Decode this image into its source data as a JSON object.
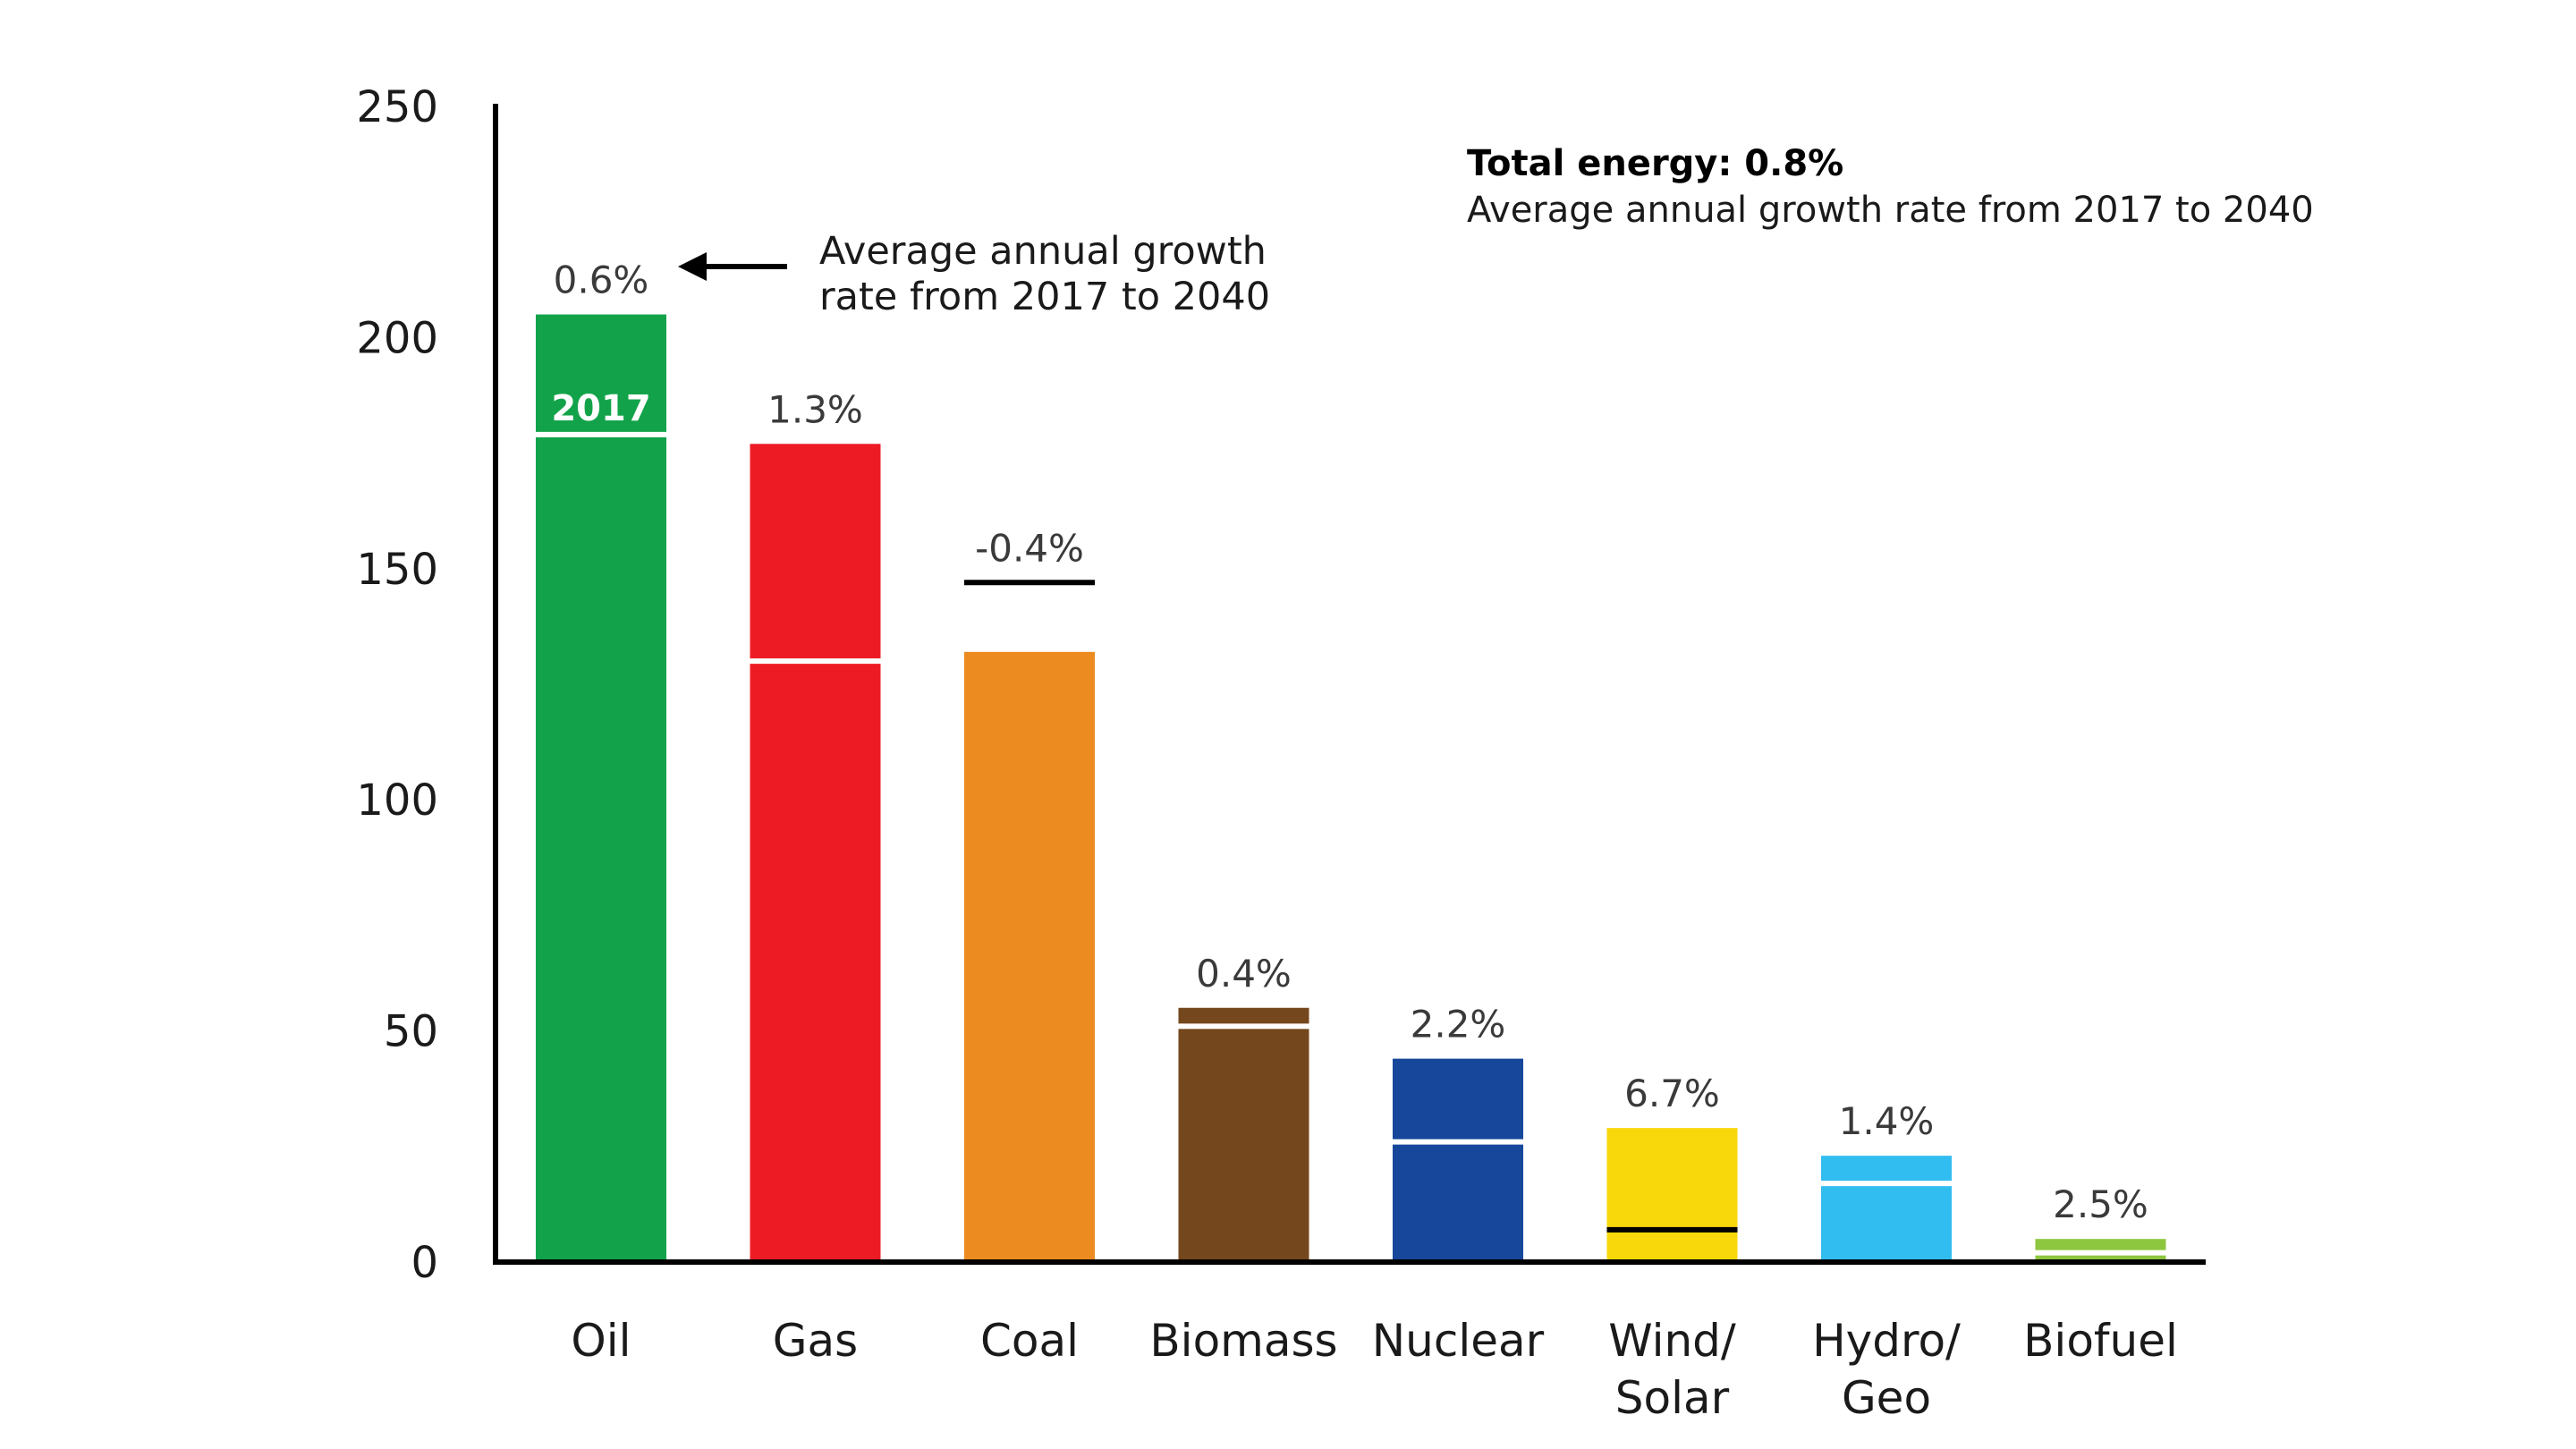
{
  "chart_data": {
    "type": "bar",
    "categories": [
      "Oil",
      "Gas",
      "Coal",
      "Biomass",
      "Nuclear",
      "Wind/ Solar",
      "Hydro/ Geo",
      "Biofuel"
    ],
    "category_lines": [
      [
        "Oil"
      ],
      [
        "Gas"
      ],
      [
        "Coal"
      ],
      [
        "Biomass"
      ],
      [
        "Nuclear"
      ],
      [
        "Wind/",
        "Solar"
      ],
      [
        "Hydro/",
        "Geo"
      ],
      [
        "Biofuel"
      ]
    ],
    "values": [
      205,
      177,
      132,
      55,
      44,
      29,
      23,
      5
    ],
    "values_2017": [
      179,
      130,
      147,
      51,
      26,
      7,
      17,
      2
    ],
    "growth_rate_labels": [
      "0.6%",
      "1.3%",
      "-0.4%",
      "0.4%",
      "2.2%",
      "6.7%",
      "1.4%",
      "2.5%"
    ],
    "colors": [
      "#12a34a",
      "#ed1c24",
      "#ec8b20",
      "#75471c",
      "#16479a",
      "#f8d80b",
      "#32bdf1",
      "#8dc63f"
    ],
    "marker_colors": [
      "#ffffff",
      "#ffffff",
      "#000000",
      "#ffffff",
      "#ffffff",
      "#000000",
      "#ffffff",
      "#ffffff"
    ],
    "ylim": [
      0,
      250
    ],
    "yticks": [
      0,
      50,
      100,
      150,
      200,
      250
    ],
    "xlabel": "",
    "ylabel": "",
    "title": "",
    "marker_label": "2017",
    "annotation_lines": [
      "Average annual growth",
      "rate from 2017 to 2040"
    ],
    "total_title": "Total energy: 0.8%",
    "total_subtitle": "Average annual growth rate from 2017 to 2040"
  }
}
